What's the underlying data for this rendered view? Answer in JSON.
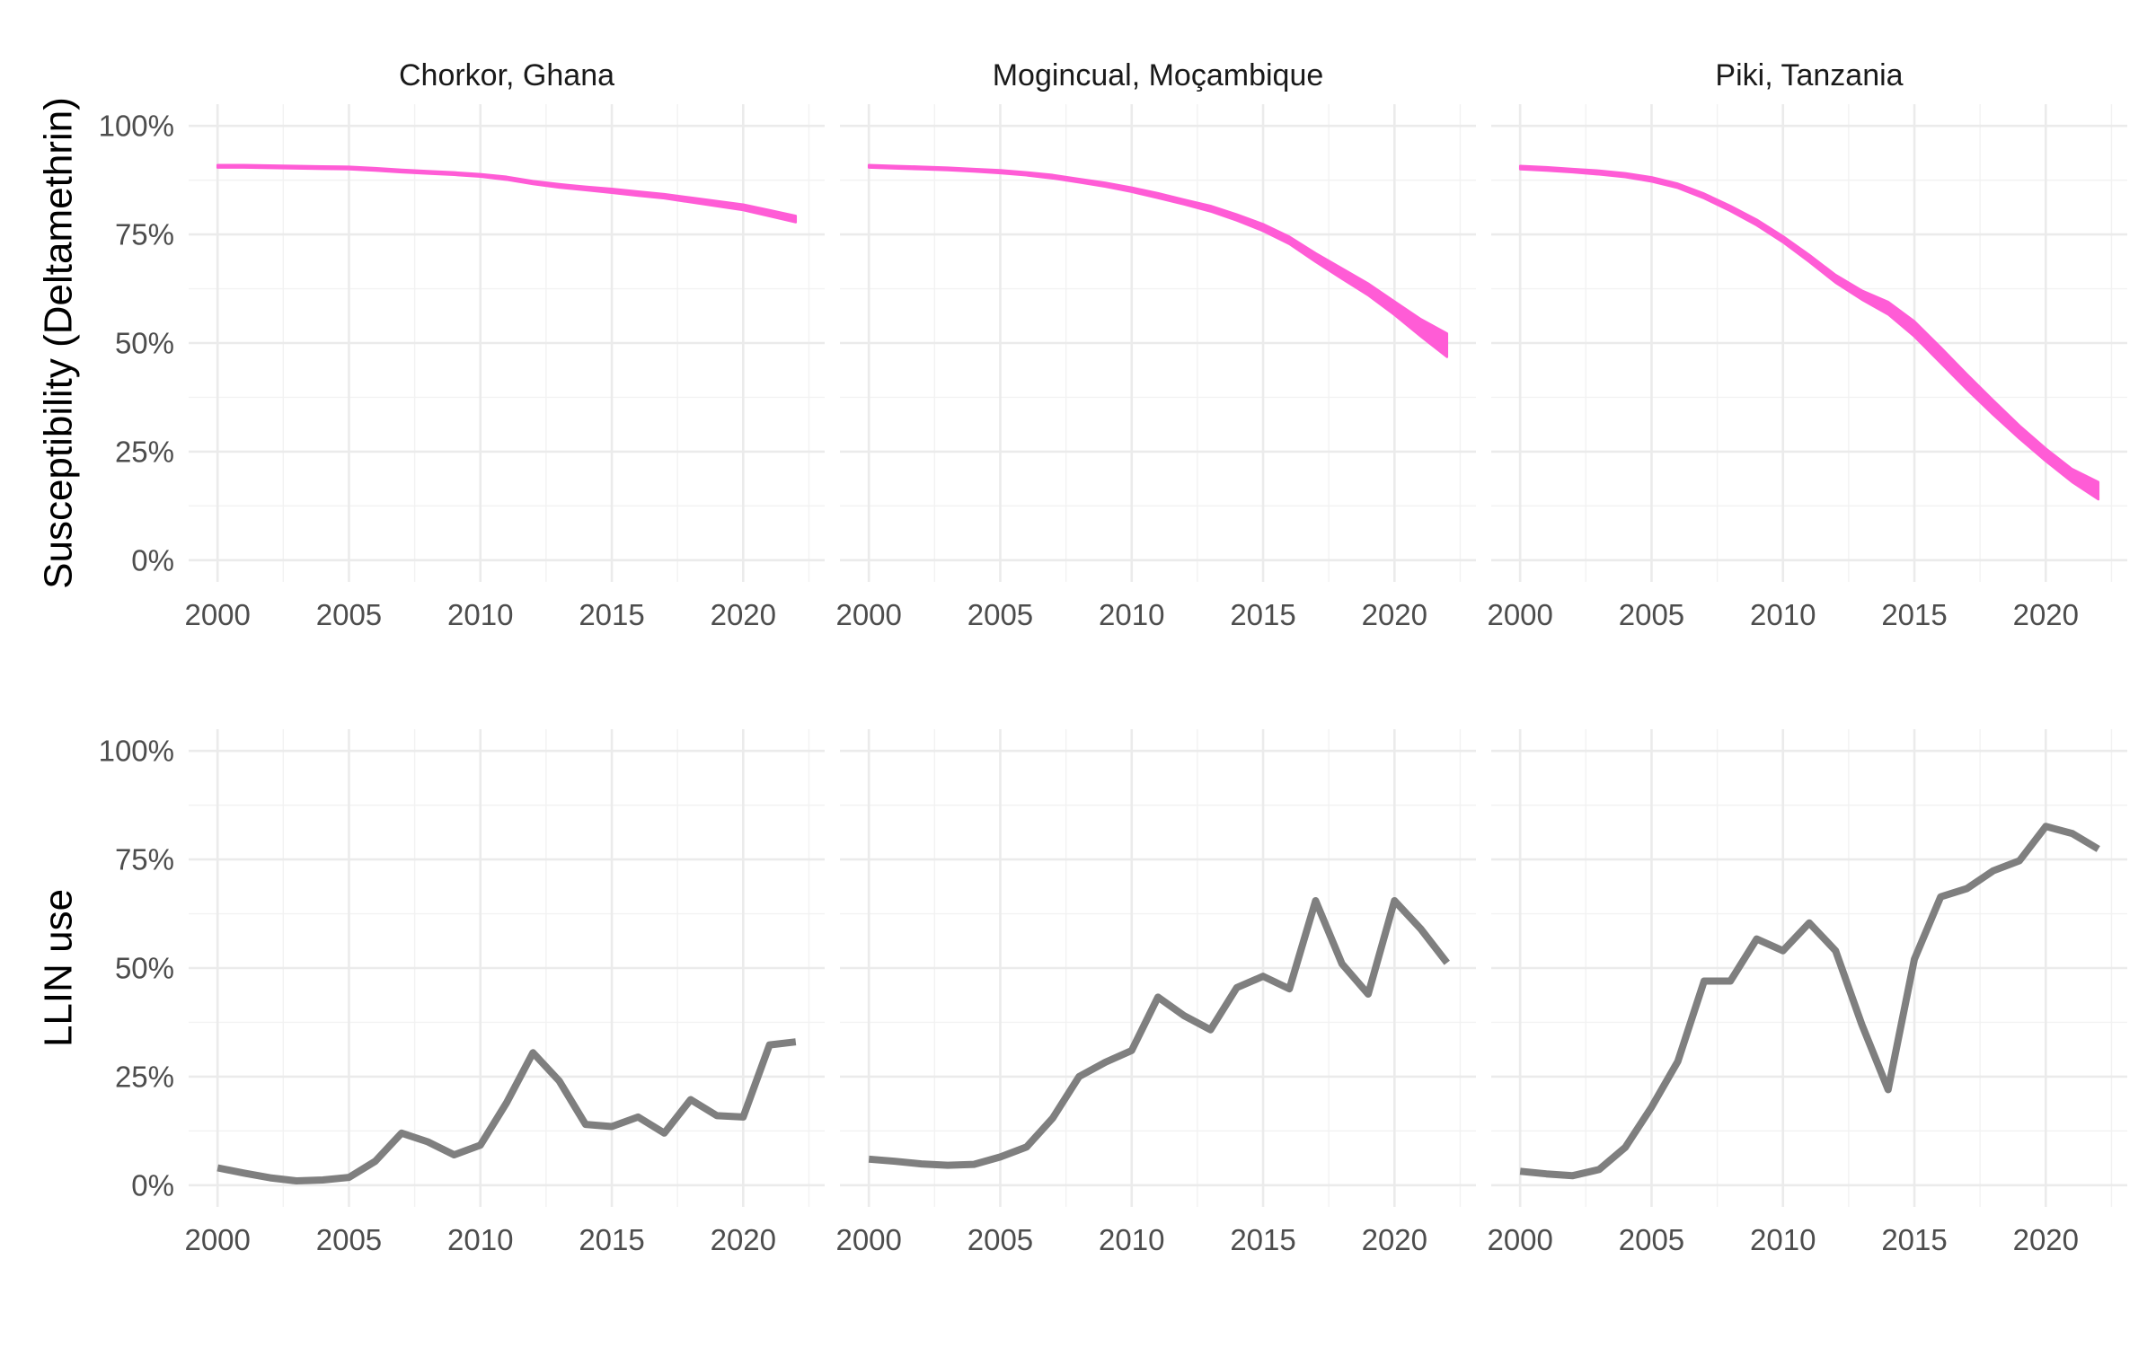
{
  "chart_data": {
    "type": "line",
    "layout": "facet grid (2 rows x 3 columns)",
    "facets": [
      "Chorkor, Ghana",
      "Mogincual, Moçambique",
      "Piki, Tanzania"
    ],
    "x_axis": {
      "lim": [
        2000,
        2022
      ],
      "ticks": [
        2000,
        2005,
        2010,
        2015,
        2020
      ],
      "tick_labels": [
        "2000",
        "2005",
        "2010",
        "2015",
        "2020"
      ]
    },
    "y_axis": {
      "lim": [
        0,
        1
      ],
      "ticks": [
        0,
        0.25,
        0.5,
        0.75,
        1
      ],
      "tick_labels": [
        "0%",
        "25%",
        "50%",
        "75%",
        "100%"
      ]
    },
    "grid": true,
    "legend": "none",
    "colors": {
      "susceptibility": "#FF5CD6",
      "llin": "#7F7F7F",
      "grid": "#EBEBEB"
    },
    "x": [
      2000,
      2001,
      2002,
      2003,
      2004,
      2005,
      2006,
      2007,
      2008,
      2009,
      2010,
      2011,
      2012,
      2013,
      2014,
      2015,
      2016,
      2017,
      2018,
      2019,
      2020,
      2021,
      2022
    ],
    "rows": [
      {
        "ylabel": "Susceptibility (Deltamethrin)",
        "type": "area",
        "panels": [
          {
            "facet": "Chorkor, Ghana",
            "lower": [
              0.904,
              0.904,
              0.903,
              0.902,
              0.901,
              0.9,
              0.897,
              0.893,
              0.89,
              0.887,
              0.883,
              0.876,
              0.866,
              0.858,
              0.852,
              0.846,
              0.839,
              0.833,
              0.824,
              0.815,
              0.806,
              0.792,
              0.778
            ],
            "upper": [
              0.91,
              0.91,
              0.909,
              0.908,
              0.907,
              0.906,
              0.903,
              0.899,
              0.896,
              0.893,
              0.889,
              0.883,
              0.873,
              0.866,
              0.86,
              0.855,
              0.849,
              0.843,
              0.835,
              0.827,
              0.819,
              0.806,
              0.793
            ]
          },
          {
            "facet": "Mogincual, Moçambique",
            "lower": [
              0.904,
              0.902,
              0.9,
              0.898,
              0.895,
              0.891,
              0.886,
              0.879,
              0.87,
              0.86,
              0.848,
              0.834,
              0.819,
              0.803,
              0.782,
              0.758,
              0.728,
              0.687,
              0.648,
              0.61,
              0.565,
              0.515,
              0.468
            ],
            "upper": [
              0.91,
              0.908,
              0.906,
              0.904,
              0.901,
              0.898,
              0.893,
              0.887,
              0.878,
              0.869,
              0.858,
              0.845,
              0.83,
              0.816,
              0.796,
              0.774,
              0.745,
              0.707,
              0.672,
              0.637,
              0.596,
              0.555,
              0.522
            ]
          },
          {
            "facet": "Piki, Tanzania",
            "lower": [
              0.9,
              0.897,
              0.893,
              0.888,
              0.882,
              0.872,
              0.857,
              0.833,
              0.804,
              0.771,
              0.732,
              0.687,
              0.639,
              0.6,
              0.566,
              0.515,
              0.454,
              0.393,
              0.335,
              0.28,
              0.228,
              0.18,
              0.14
            ],
            "upper": [
              0.908,
              0.905,
              0.901,
              0.897,
              0.891,
              0.882,
              0.867,
              0.844,
              0.816,
              0.784,
              0.746,
              0.703,
              0.657,
              0.621,
              0.595,
              0.55,
              0.49,
              0.428,
              0.368,
              0.31,
              0.257,
              0.21,
              0.18
            ]
          }
        ]
      },
      {
        "ylabel": "LLIN use",
        "type": "line",
        "panels": [
          {
            "facet": "Chorkor, Ghana",
            "values": [
              0.04,
              0.028,
              0.017,
              0.01,
              0.012,
              0.018,
              0.055,
              0.12,
              0.1,
              0.07,
              0.092,
              0.19,
              0.305,
              0.24,
              0.14,
              0.135,
              0.157,
              0.12,
              0.197,
              0.16,
              0.157,
              0.323,
              0.33
            ]
          },
          {
            "facet": "Mogincual, Moçambique",
            "values": [
              0.06,
              0.055,
              0.049,
              0.046,
              0.048,
              0.065,
              0.088,
              0.155,
              0.25,
              0.283,
              0.31,
              0.433,
              0.39,
              0.358,
              0.455,
              0.481,
              0.452,
              0.655,
              0.51,
              0.44,
              0.655,
              0.59,
              0.512
            ]
          },
          {
            "facet": "Piki, Tanzania",
            "values": [
              0.032,
              0.026,
              0.022,
              0.036,
              0.087,
              0.18,
              0.285,
              0.47,
              0.47,
              0.567,
              0.54,
              0.604,
              0.54,
              0.37,
              0.22,
              0.52,
              0.664,
              0.683,
              0.724,
              0.747,
              0.826,
              0.81,
              0.774
            ]
          }
        ]
      }
    ]
  }
}
